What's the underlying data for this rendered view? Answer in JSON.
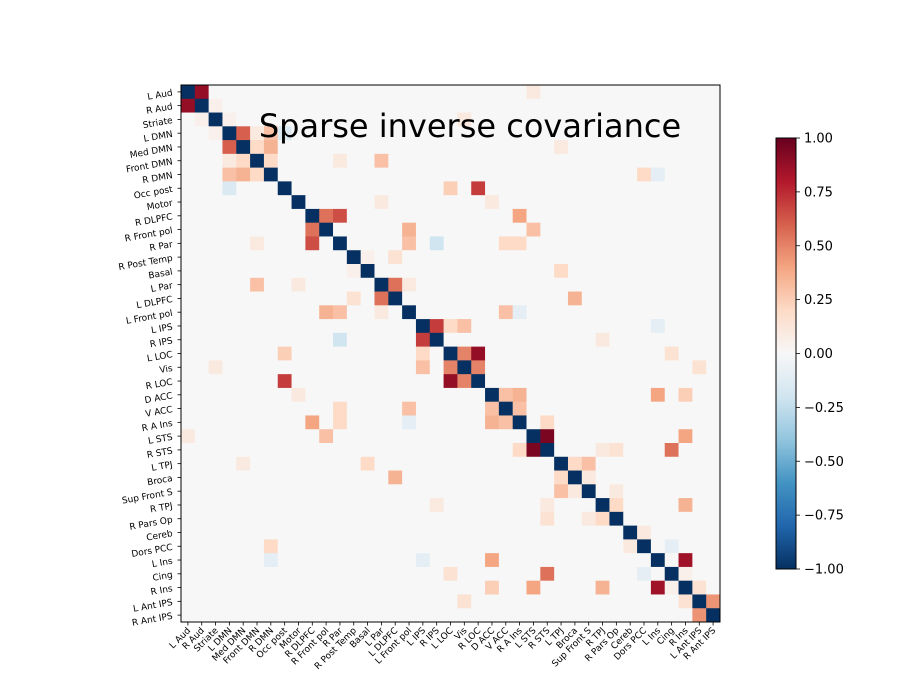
{
  "chart_data": {
    "type": "heatmap",
    "title": "Sparse inverse covariance",
    "labels": [
      "L Aud",
      "R Aud",
      "Striate",
      "L DMN",
      "Med DMN",
      "Front DMN",
      "R DMN",
      "Occ post",
      "Motor",
      "R DLPFC",
      "R Front pol",
      "R Par",
      "R Post Temp",
      "Basal",
      "L Par",
      "L DLPFC",
      "L Front pol",
      "L IPS",
      "R IPS",
      "L LOC",
      "Vis",
      "R LOC",
      "D ACC",
      "V ACC",
      "R A Ins",
      "L STS",
      "R STS",
      "L TPJ",
      "Broca",
      "Sup Front S",
      "R TPJ",
      "R Pars Op",
      "Cereb",
      "Dors PCC",
      "L Ins",
      "Cing",
      "R Ins",
      "L Ant IPS",
      "R Ant IPS"
    ],
    "diagonal_value": -1.0,
    "background_value": 0.0,
    "entries": [
      [
        0,
        1,
        0.88
      ],
      [
        1,
        2,
        0.05
      ],
      [
        2,
        3,
        0.05
      ],
      [
        3,
        4,
        0.6
      ],
      [
        3,
        5,
        0.1
      ],
      [
        3,
        6,
        0.3
      ],
      [
        4,
        5,
        0.2
      ],
      [
        4,
        6,
        0.35
      ],
      [
        5,
        6,
        0.2
      ],
      [
        3,
        7,
        -0.15
      ],
      [
        5,
        14,
        0.3
      ],
      [
        6,
        34,
        -0.1
      ],
      [
        6,
        33,
        0.2
      ],
      [
        7,
        19,
        0.25
      ],
      [
        7,
        21,
        0.7
      ],
      [
        9,
        10,
        0.55
      ],
      [
        9,
        11,
        0.65
      ],
      [
        10,
        16,
        0.35
      ],
      [
        11,
        16,
        0.3
      ],
      [
        11,
        18,
        -0.2
      ],
      [
        11,
        23,
        0.2
      ],
      [
        11,
        24,
        0.2
      ],
      [
        8,
        22,
        0.1
      ],
      [
        9,
        24,
        0.4
      ],
      [
        12,
        13,
        0.05
      ],
      [
        13,
        27,
        0.2
      ],
      [
        14,
        15,
        0.55
      ],
      [
        14,
        16,
        0.1
      ],
      [
        15,
        28,
        0.35
      ],
      [
        16,
        23,
        0.3
      ],
      [
        16,
        24,
        -0.1
      ],
      [
        17,
        18,
        0.7
      ],
      [
        17,
        19,
        0.2
      ],
      [
        17,
        20,
        0.3
      ],
      [
        17,
        34,
        -0.1
      ],
      [
        19,
        20,
        0.5
      ],
      [
        19,
        21,
        0.88
      ],
      [
        20,
        21,
        0.5
      ],
      [
        19,
        35,
        0.15
      ],
      [
        20,
        37,
        0.15
      ],
      [
        22,
        23,
        0.3
      ],
      [
        22,
        24,
        0.35
      ],
      [
        23,
        24,
        0.3
      ],
      [
        22,
        34,
        0.4
      ],
      [
        22,
        36,
        0.25
      ],
      [
        24,
        26,
        0.2
      ],
      [
        25,
        26,
        0.95
      ],
      [
        25,
        36,
        0.4
      ],
      [
        26,
        35,
        0.55
      ],
      [
        27,
        28,
        0.2
      ],
      [
        27,
        29,
        0.3
      ],
      [
        30,
        36,
        0.35
      ],
      [
        33,
        35,
        -0.1
      ],
      [
        34,
        36,
        0.85
      ],
      [
        36,
        37,
        0.15
      ],
      [
        37,
        38,
        0.45
      ],
      [
        35,
        36,
        0.05
      ],
      [
        0,
        25,
        0.1
      ],
      [
        2,
        20,
        0.1
      ],
      [
        4,
        27,
        0.1
      ],
      [
        5,
        11,
        0.1
      ],
      [
        8,
        14,
        0.1
      ],
      [
        10,
        25,
        0.3
      ],
      [
        12,
        15,
        0.15
      ],
      [
        18,
        30,
        0.1
      ],
      [
        26,
        31,
        0.15
      ],
      [
        28,
        29,
        0.1
      ],
      [
        29,
        31,
        0.1
      ],
      [
        32,
        33,
        0.1
      ],
      [
        30,
        31,
        0.2
      ],
      [
        26,
        30,
        0.1
      ]
    ],
    "colorbar": {
      "ticks": [
        "1.00",
        "0.75",
        "0.50",
        "0.25",
        "0.00",
        "−0.25",
        "−0.50",
        "−0.75",
        "−1.00"
      ],
      "range": [
        -1.0,
        1.0
      ],
      "colormap": "RdBu_r"
    }
  }
}
